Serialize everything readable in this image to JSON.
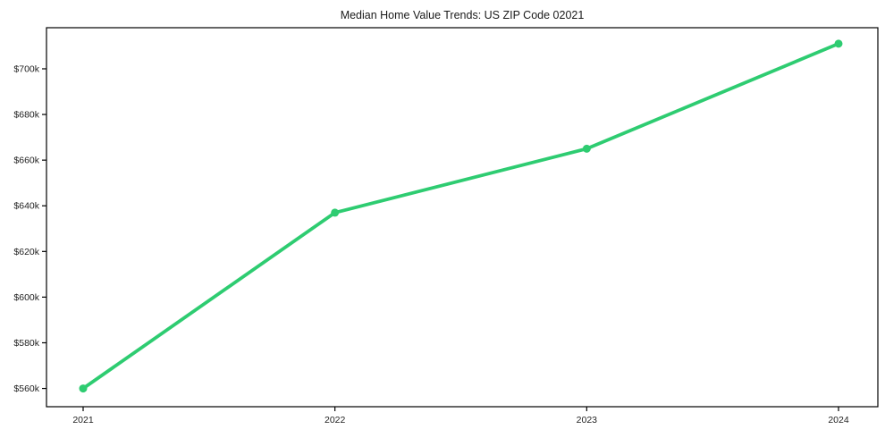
{
  "title": "Median Home Value Trends: US ZIP Code 02021",
  "colors": {
    "line": "#2ecc71",
    "axis": "#000000",
    "text": "#1a1a1a",
    "background": "#ffffff"
  },
  "chart_data": {
    "type": "line",
    "title": "Median Home Value Trends: US ZIP Code 02021",
    "x": [
      "2021",
      "2022",
      "2023",
      "2024"
    ],
    "series": [
      {
        "name": "Median Home Value",
        "color": "#2ecc71",
        "values": [
          560000,
          637000,
          665000,
          711000
        ]
      }
    ],
    "xlabel": "",
    "ylabel": "",
    "ylim": [
      552000,
      718000
    ],
    "yticks": [
      560000,
      580000,
      600000,
      620000,
      640000,
      660000,
      680000,
      700000
    ],
    "ytick_labels": [
      "$560k",
      "$580k",
      "$600k",
      "$620k",
      "$640k",
      "$660k",
      "$680k",
      "$700k"
    ],
    "xtick_labels": [
      "2021",
      "2022",
      "2023",
      "2024"
    ],
    "grid": false,
    "legend_position": "none",
    "marker": "circle"
  }
}
